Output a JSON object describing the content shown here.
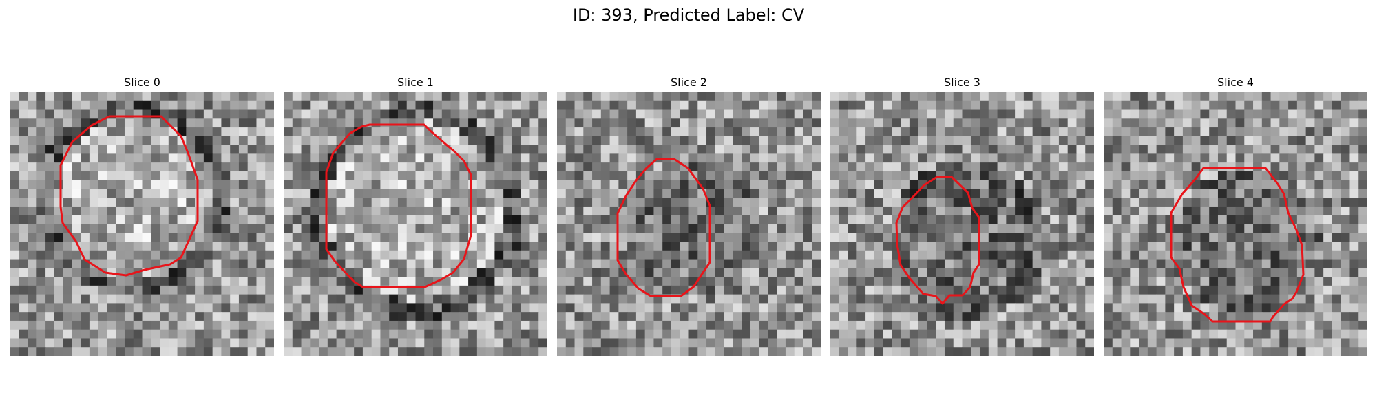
{
  "figure": {
    "title": "ID: 393, Predicted Label: CV",
    "contour_color": "#e8141a",
    "panels": [
      {
        "title": "Slice 0"
      },
      {
        "title": "Slice 1"
      },
      {
        "title": "Slice 2"
      },
      {
        "title": "Slice 3"
      },
      {
        "title": "Slice 4"
      }
    ]
  }
}
